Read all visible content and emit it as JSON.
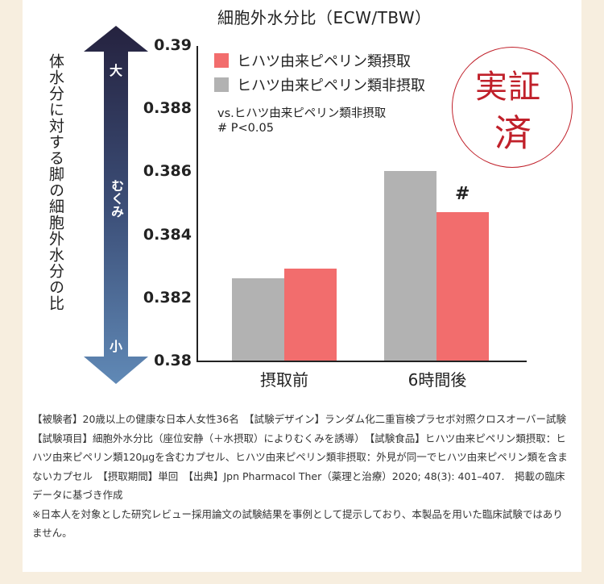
{
  "colors": {
    "background": "#f7eedf",
    "panel": "#ffffff",
    "series_intake": "#f26d6d",
    "series_non_intake": "#b2b2b2",
    "stamp_red": "#c0202a",
    "arrow_top": "#25223f",
    "arrow_bottom": "#5f86b4"
  },
  "chart_title": "細胞外水分比（ECW/TBW）",
  "y_axis_label": "体水分に対する脚の細胞外水分の比",
  "arrow": {
    "top_label": "大",
    "middle_label": "むくみ",
    "bottom_label": "小"
  },
  "legend": [
    {
      "label": "ヒハツ由来ピペリン類摂取",
      "color": "#f26d6d"
    },
    {
      "label": "ヒハツ由来ピペリン類非摂取",
      "color": "#b2b2b2"
    }
  ],
  "notes": {
    "comparison": "vs.ヒハツ由来ピペリン類非摂取",
    "significance": "# P<0.05"
  },
  "stamp": {
    "line1": "実証",
    "line2": "済"
  },
  "significance_marker": "#",
  "chart_data": {
    "type": "bar",
    "title": "細胞外水分比（ECW/TBW）",
    "xlabel": "",
    "ylabel": "体水分に対する脚の細胞外水分の比",
    "categories": [
      "摂取前",
      "6時間後"
    ],
    "series": [
      {
        "name": "ヒハツ由来ピペリン類非摂取",
        "color": "#b2b2b2",
        "values": [
          0.3826,
          0.386
        ]
      },
      {
        "name": "ヒハツ由来ピペリン類摂取",
        "color": "#f26d6d",
        "values": [
          0.3829,
          0.3847
        ]
      }
    ],
    "ylim": [
      0.38,
      0.39
    ],
    "yticks": [
      "0.38",
      "0.382",
      "0.384",
      "0.386",
      "0.388",
      "0.39"
    ],
    "grid": false,
    "legend_position": "top-left inside",
    "annotations": [
      {
        "text": "#",
        "target": "6時間後 / ヒハツ由来ピペリン類摂取",
        "meaning": "P<0.05 vs.ヒハツ由来ピペリン類非摂取"
      }
    ]
  },
  "footnote": {
    "paragraph1": "【被験者】20歳以上の健康な日本人女性36名　【試験デザイン】ランダム化二重盲検プラセボ対照クロスオーバー試験　【試験項目】細胞外水分比（座位安静（＋水摂取）によりむくみを誘導）　【試験食品】ヒハツ由来ピペリン類摂取：ヒハツ由来ピペリン類120μgを含むカプセル、ヒハツ由来ピペリン類非摂取：外見が同一でヒハツ由来ピペリン類を含まないカプセル　【摂取期間】単回　【出典】Jpn Pharmacol Ther（薬理と治療）2020; 48(3): 401–407.　掲載の臨床データに基づき作成",
    "paragraph2": "※日本人を対象とした研究レビュー採用論文の試験結果を事例として提示しており、本製品を用いた臨床試験ではありません。"
  }
}
